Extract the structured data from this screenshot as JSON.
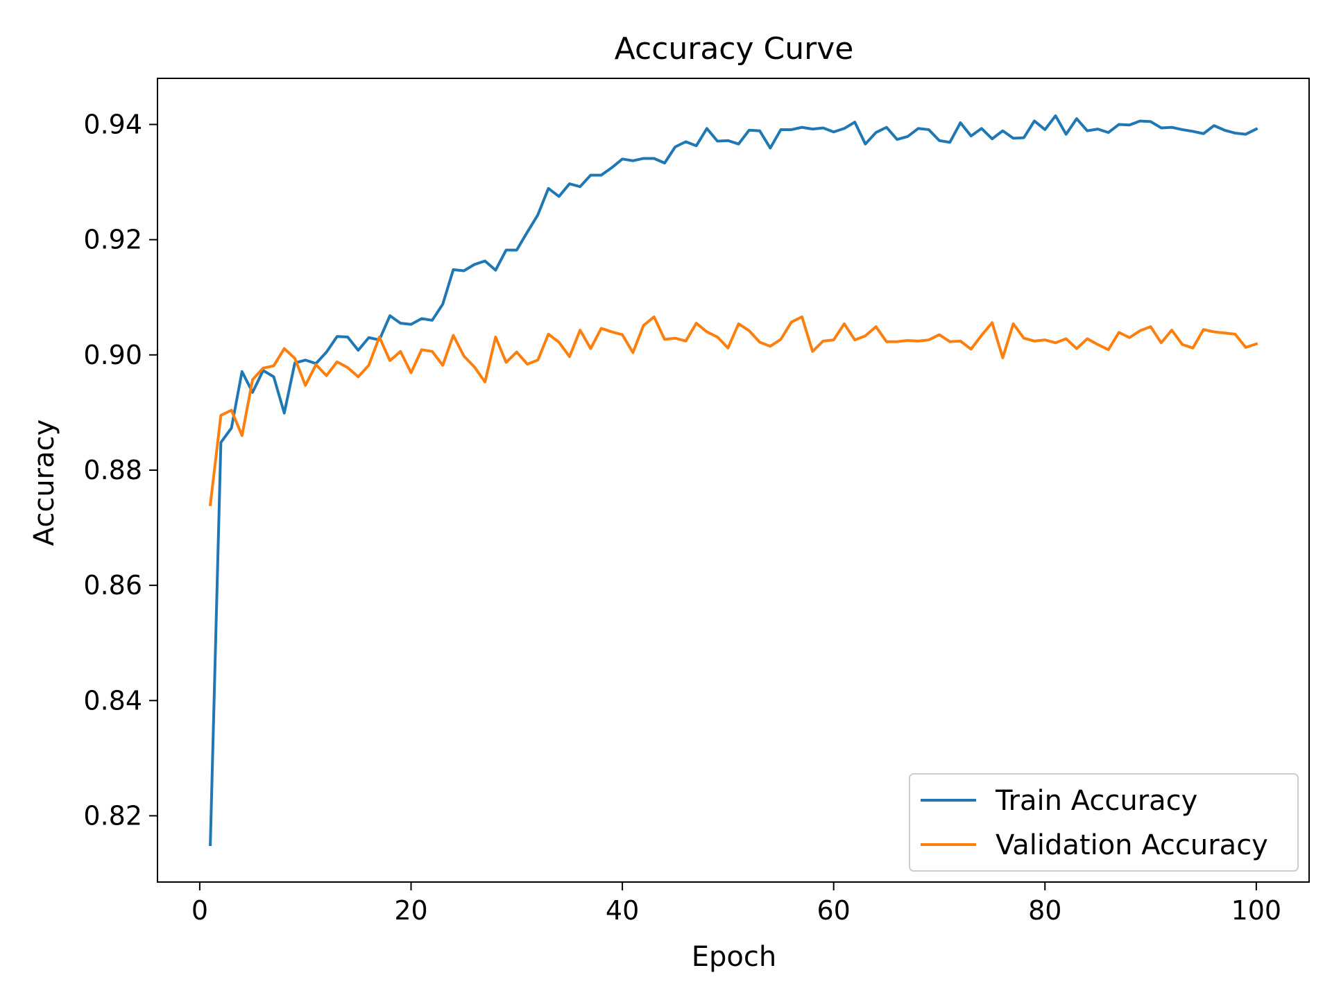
{
  "chart_data": {
    "type": "line",
    "title": "Accuracy Curve",
    "xlabel": "Epoch",
    "ylabel": "Accuracy",
    "xlim": [
      -4,
      105
    ],
    "ylim": [
      0.8085,
      0.948
    ],
    "xticks": [
      0,
      20,
      40,
      60,
      80,
      100
    ],
    "yticks": [
      0.82,
      0.84,
      0.86,
      0.88,
      0.9,
      0.92,
      0.94
    ],
    "xtick_labels": [
      "0",
      "20",
      "40",
      "60",
      "80",
      "100"
    ],
    "ytick_labels": [
      "0.82",
      "0.84",
      "0.86",
      "0.88",
      "0.90",
      "0.92",
      "0.94"
    ],
    "grid": false,
    "legend_position": "bottom-right",
    "x": [
      1,
      2,
      3,
      4,
      5,
      6,
      7,
      8,
      9,
      10,
      11,
      12,
      13,
      14,
      15,
      16,
      17,
      18,
      19,
      20,
      21,
      22,
      23,
      24,
      25,
      26,
      27,
      28,
      29,
      30,
      31,
      32,
      33,
      34,
      35,
      36,
      37,
      38,
      39,
      40,
      41,
      42,
      43,
      44,
      45,
      46,
      47,
      48,
      49,
      50,
      51,
      52,
      53,
      54,
      55,
      56,
      57,
      58,
      59,
      60,
      61,
      62,
      63,
      64,
      65,
      66,
      67,
      68,
      69,
      70,
      71,
      72,
      73,
      74,
      75,
      76,
      77,
      78,
      79,
      80,
      81,
      82,
      83,
      84,
      85,
      86,
      87,
      88,
      89,
      90,
      91,
      92,
      93,
      94,
      95,
      96,
      97,
      98,
      99,
      100
    ],
    "series": [
      {
        "name": "Train Accuracy",
        "color": "#1f77b4",
        "values": [
          0.815,
          0.8848,
          0.8873,
          0.8971,
          0.8935,
          0.8973,
          0.8962,
          0.8899,
          0.8986,
          0.8991,
          0.8985,
          0.9005,
          0.9032,
          0.9031,
          0.9008,
          0.903,
          0.9026,
          0.9068,
          0.9055,
          0.9053,
          0.9063,
          0.906,
          0.9088,
          0.9148,
          0.9146,
          0.9157,
          0.9163,
          0.9147,
          0.9182,
          0.9182,
          0.9213,
          0.9243,
          0.9289,
          0.9275,
          0.9297,
          0.9292,
          0.9312,
          0.9312,
          0.9325,
          0.934,
          0.9337,
          0.9341,
          0.9341,
          0.9333,
          0.9361,
          0.937,
          0.9363,
          0.9393,
          0.9371,
          0.9372,
          0.9366,
          0.939,
          0.9389,
          0.9359,
          0.9391,
          0.9391,
          0.9395,
          0.9392,
          0.9394,
          0.9387,
          0.9393,
          0.9404,
          0.9366,
          0.9386,
          0.9395,
          0.9374,
          0.9379,
          0.9393,
          0.9391,
          0.9372,
          0.9369,
          0.9403,
          0.938,
          0.9393,
          0.9375,
          0.9389,
          0.9376,
          0.9377,
          0.9406,
          0.9391,
          0.9415,
          0.9383,
          0.941,
          0.9389,
          0.9392,
          0.9386,
          0.94,
          0.9399,
          0.9406,
          0.9405,
          0.9394,
          0.9395,
          0.9391,
          0.9388,
          0.9384,
          0.9398,
          0.939,
          0.9385,
          0.9383,
          0.9392
        ]
      },
      {
        "name": "Validation Accuracy",
        "color": "#ff7f0e",
        "values": [
          0.874,
          0.8895,
          0.8904,
          0.886,
          0.8957,
          0.8977,
          0.8981,
          0.9011,
          0.8994,
          0.8947,
          0.8983,
          0.8964,
          0.8988,
          0.8978,
          0.8962,
          0.8982,
          0.9031,
          0.899,
          0.9006,
          0.8969,
          0.9009,
          0.9006,
          0.8982,
          0.9034,
          0.8998,
          0.8979,
          0.8953,
          0.9031,
          0.8987,
          0.9005,
          0.8984,
          0.8991,
          0.9036,
          0.9022,
          0.8997,
          0.9043,
          0.9011,
          0.9046,
          0.904,
          0.9035,
          0.9004,
          0.9051,
          0.9066,
          0.9027,
          0.9029,
          0.9024,
          0.9055,
          0.904,
          0.9031,
          0.9012,
          0.9054,
          0.9042,
          0.9022,
          0.9015,
          0.9027,
          0.9057,
          0.9066,
          0.9006,
          0.9024,
          0.9026,
          0.9054,
          0.9026,
          0.9033,
          0.9049,
          0.9023,
          0.9023,
          0.9025,
          0.9024,
          0.9026,
          0.9035,
          0.9023,
          0.9024,
          0.901,
          0.9034,
          0.9056,
          0.8995,
          0.9054,
          0.9029,
          0.9024,
          0.9026,
          0.9021,
          0.9028,
          0.9011,
          0.9028,
          0.9018,
          0.9009,
          0.9039,
          0.903,
          0.9042,
          0.9049,
          0.9021,
          0.9043,
          0.9018,
          0.9012,
          0.9044,
          0.904,
          0.9038,
          0.9036,
          0.9013,
          0.9019
        ]
      }
    ]
  }
}
